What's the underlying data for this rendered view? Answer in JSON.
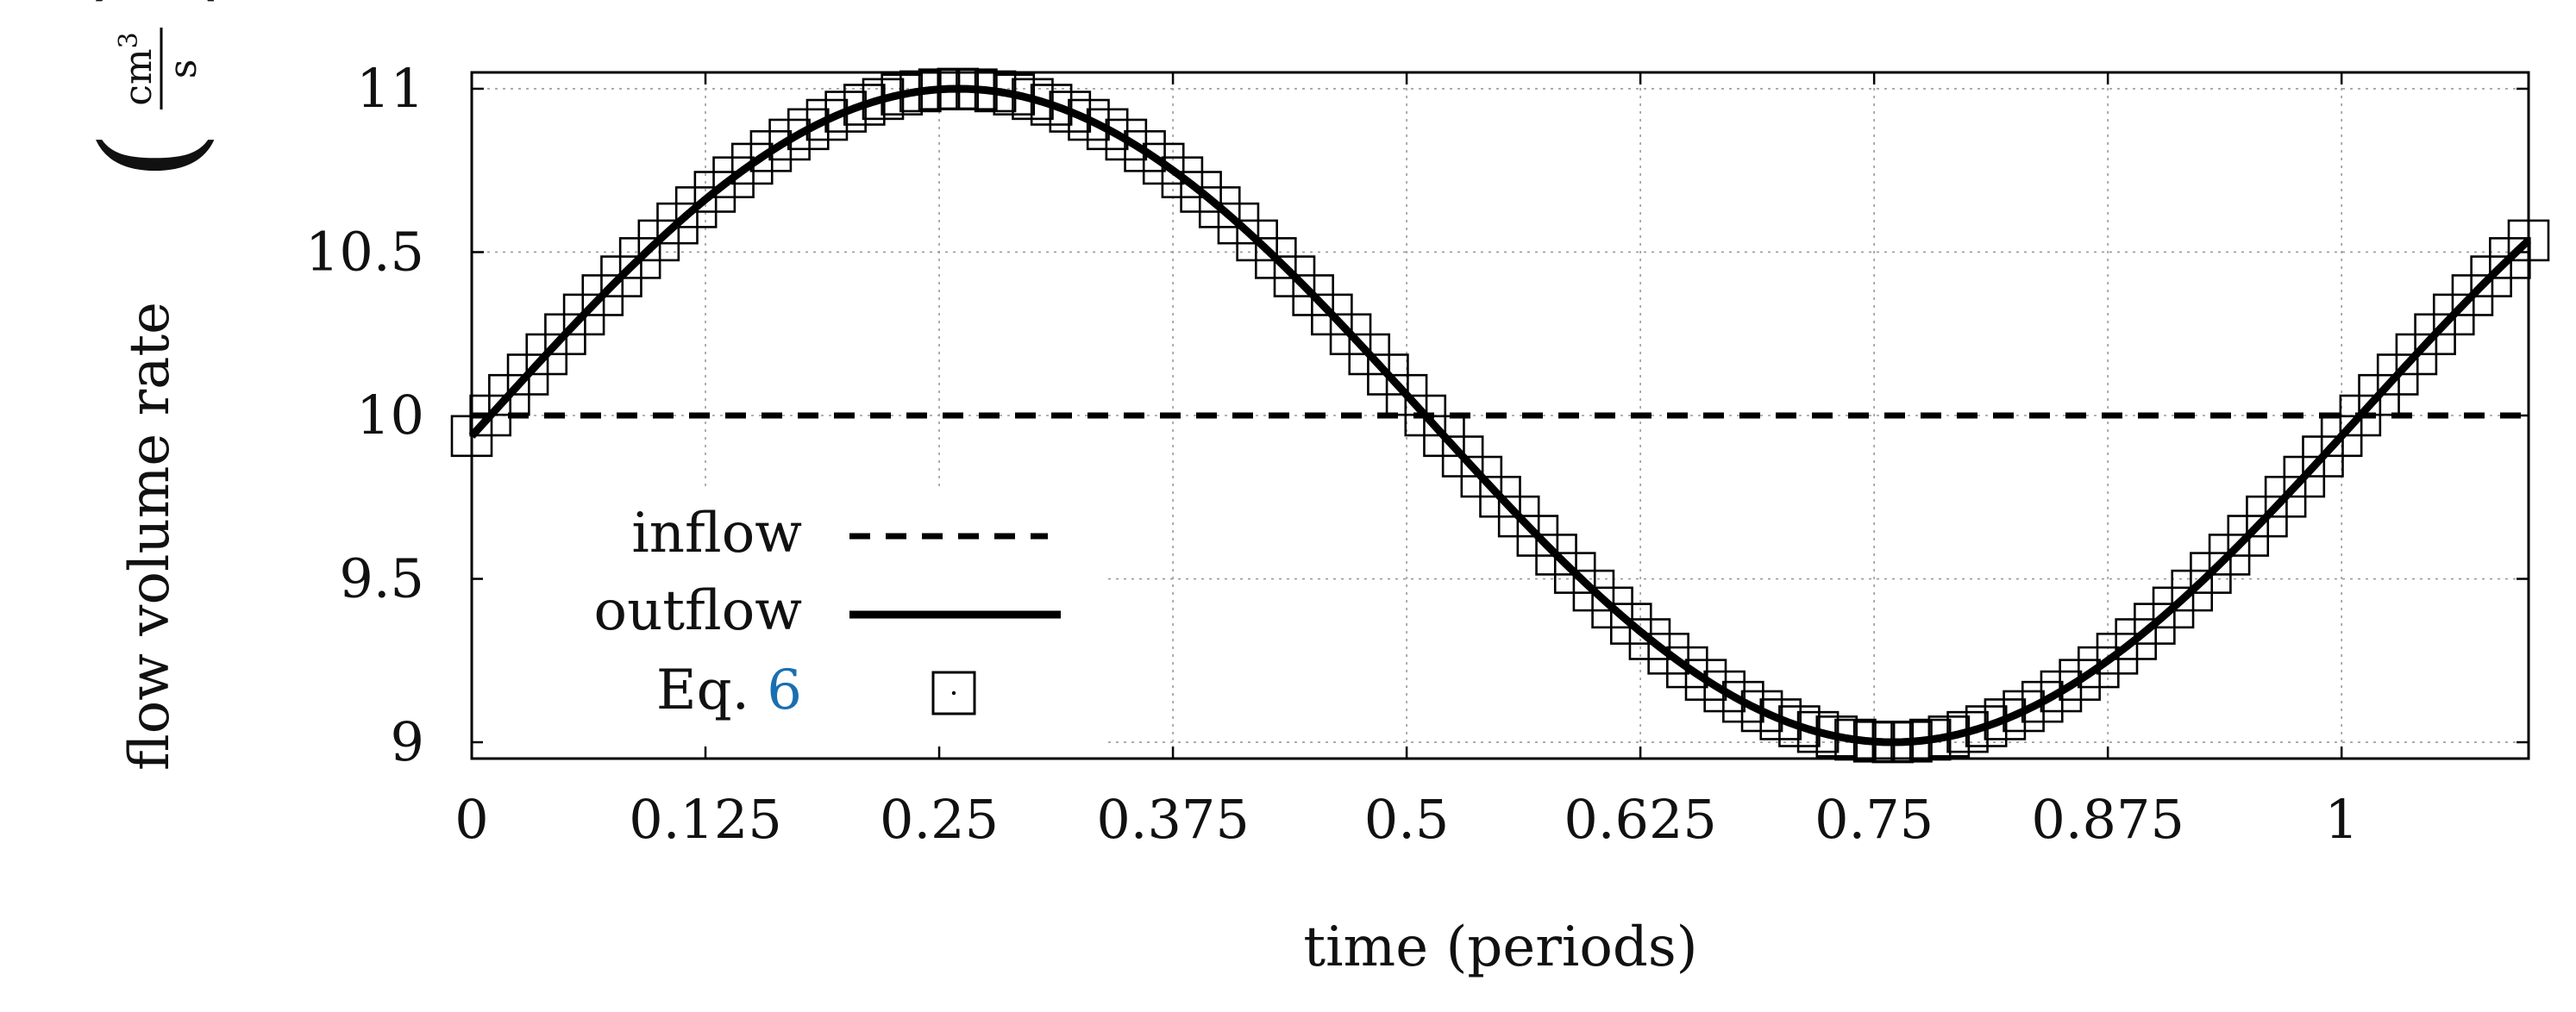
{
  "chart_data": {
    "type": "line",
    "title": "",
    "xlabel": "time (periods)",
    "ylabel": "flow volume rate",
    "ylabel_unit_numerator": "cm",
    "ylabel_unit_exponent": "3",
    "ylabel_unit_denominator": "s",
    "xlim": [
      0,
      1.1
    ],
    "ylim": [
      8.95,
      11.05
    ],
    "x_ticks": [
      0,
      0.125,
      0.25,
      0.375,
      0.5,
      0.625,
      0.75,
      0.875,
      1
    ],
    "x_tick_labels": [
      "0",
      "0.125",
      "0.25",
      "0.375",
      "0.5",
      "0.625",
      "0.75",
      "0.875",
      "1"
    ],
    "y_ticks": [
      9,
      9.5,
      10,
      10.5,
      11
    ],
    "y_tick_labels": [
      "9",
      "9.5",
      "10",
      "10.5",
      "11"
    ],
    "grid": true,
    "legend_position": "bottom-left",
    "series": [
      {
        "name": "inflow",
        "style": "dashed",
        "function": "constant",
        "value": 10
      },
      {
        "name": "outflow",
        "style": "solid",
        "function": "10 + sin(2*pi*(t - 0.01))",
        "samples": 221
      },
      {
        "name": "Eq. 6",
        "style": "square-markers",
        "function": "10 + sin(2*pi*(t - 0.01))",
        "x_start": 0,
        "x_step": 0.01,
        "count": 111
      }
    ],
    "legend": [
      {
        "label": "inflow",
        "style": "dashed"
      },
      {
        "label": "outflow",
        "style": "solid"
      },
      {
        "label_prefix": "Eq. ",
        "label_ref": "6",
        "ref_color": "#1a6fb0",
        "style": "square-markers"
      }
    ]
  }
}
